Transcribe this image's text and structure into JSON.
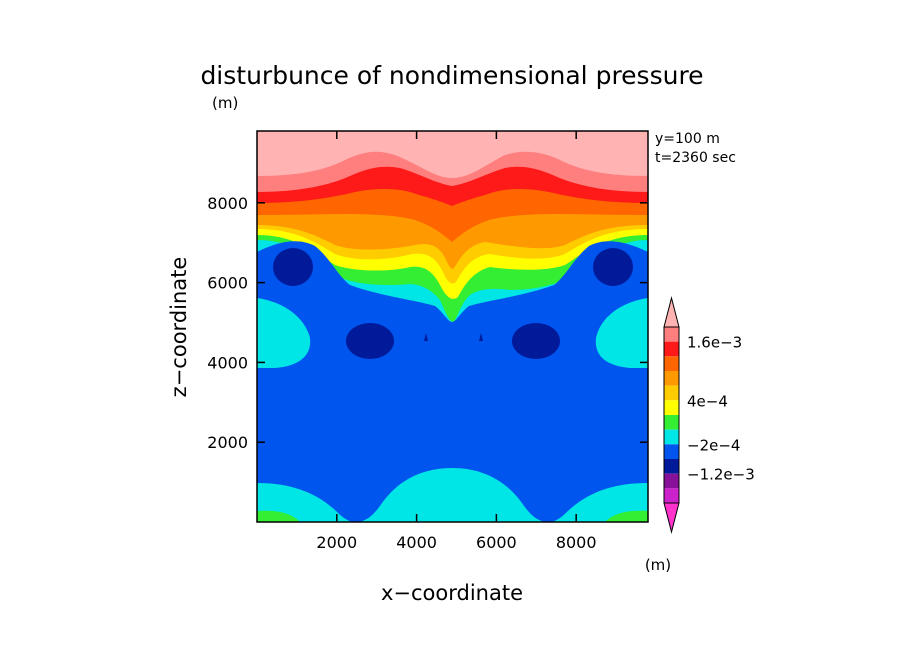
{
  "chart_data": {
    "type": "heatmap",
    "title": "disturbunce of nondimensional pressure",
    "unit": "(m)",
    "info": [
      "y=100 m",
      "t=2360 sec"
    ],
    "xlabel": "x−coordinate",
    "ylabel": "z−coordinate",
    "xlim": [
      0,
      9800
    ],
    "ylim": [
      0,
      9800
    ],
    "xticks": [
      2000,
      4000,
      6000,
      8000
    ],
    "xtick_labels": [
      "2000",
      "4000",
      "6000",
      "8000"
    ],
    "yticks": [
      2000,
      4000,
      6000,
      8000
    ],
    "ytick_labels": [
      "2000",
      "4000",
      "6000",
      "8000"
    ],
    "colorbar": {
      "unit": "(m)",
      "level_labels": [
        {
          "value": 0.0016,
          "text": "1.6e−3"
        },
        {
          "value": 0.0004,
          "text": "4e−4"
        },
        {
          "value": -0.0002,
          "text": "−2e−4"
        },
        {
          "value": -0.0012,
          "text": "−1.2e−3"
        }
      ],
      "bands": [
        {
          "upper": null,
          "color": "#ff7f7f"
        },
        {
          "upper": 0.0016,
          "color": "#ff1a1a"
        },
        {
          "upper": 0.0012,
          "color": "#ff6600"
        },
        {
          "upper": 0.0008,
          "color": "#ff9900"
        },
        {
          "upper": 0.0006,
          "color": "#ffcc00"
        },
        {
          "upper": 0.0004,
          "color": "#ffff00"
        },
        {
          "upper": 0.0002,
          "color": "#33ee33"
        },
        {
          "upper": 0.0,
          "color": "#00e5e5"
        },
        {
          "upper": -0.0002,
          "color": "#0055ee"
        },
        {
          "upper": -0.0008,
          "color": "#001a99"
        },
        {
          "upper": -0.0012,
          "color": "#881199"
        },
        {
          "upper": -0.0016,
          "color": "#cc22cc"
        }
      ],
      "top_arrow_color": "#ffb3b3",
      "bottom_arrow_color": "#ff33cc"
    }
  }
}
